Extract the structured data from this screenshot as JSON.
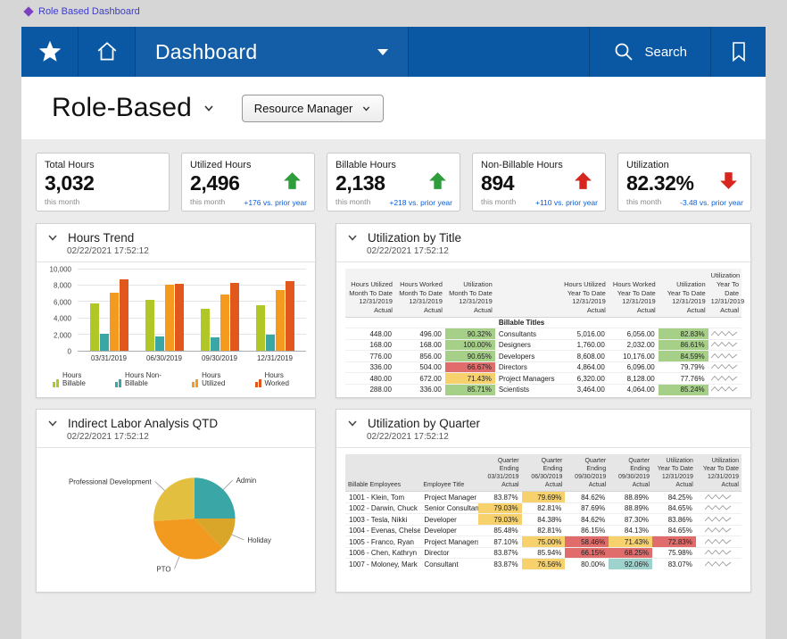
{
  "palette": {
    "nav_blue": "#0a58a4",
    "link_blue": "#0b5cc4",
    "positive": "#2e9e3c",
    "negative": "#d7261e",
    "delta_blue": "#0b5ed7",
    "cell_fills": {
      "green": "#a6d087",
      "yellow": "#f6d16c",
      "red": "#e06c6c",
      "teal": "#9ed3cd"
    }
  },
  "titlebar": {
    "app_title": "Role Based Dashboard"
  },
  "navbar": {
    "title": "Dashboard",
    "search_label": "Search",
    "icons": [
      "star-icon",
      "home-icon",
      "dropdown-caret-icon",
      "search-icon",
      "bookmark-icon"
    ]
  },
  "header": {
    "title": "Role-Based",
    "role_selector": "Resource Manager"
  },
  "kpis": [
    {
      "label": "Total Hours",
      "value": "3,032",
      "sub": "this month",
      "arrow": "none",
      "delta": ""
    },
    {
      "label": "Utilized Hours",
      "value": "2,496",
      "sub": "this month",
      "arrow": "up-green",
      "delta": "+176 vs. prior year"
    },
    {
      "label": "Billable Hours",
      "value": "2,138",
      "sub": "this month",
      "arrow": "up-green",
      "delta": "+218 vs. prior year"
    },
    {
      "label": "Non-Billable Hours",
      "value": "894",
      "sub": "this month",
      "arrow": "up-red",
      "delta": "+110 vs. prior year"
    },
    {
      "label": "Utilization",
      "value": "82.32%",
      "sub": "this month",
      "arrow": "down-red",
      "delta": "-3.48 vs. prior year"
    }
  ],
  "chart_data": [
    {
      "id": "hours_trend",
      "type": "bar",
      "title": "Hours Trend",
      "timestamp": "02/22/2021 17:52:12",
      "categories": [
        "03/31/2019",
        "06/30/2019",
        "09/30/2019",
        "12/31/2019"
      ],
      "series": [
        {
          "name": "Hours Billable",
          "color": "#b1c727",
          "values": [
            5800,
            6300,
            5200,
            5600
          ]
        },
        {
          "name": "Hours Non-Billable",
          "color": "#3aa6a6",
          "values": [
            2100,
            1800,
            1700,
            2000
          ]
        },
        {
          "name": "Hours Utilized",
          "color": "#f39a1f",
          "values": [
            7100,
            8100,
            6900,
            7500
          ]
        },
        {
          "name": "Hours Worked",
          "color": "#e2571c",
          "values": [
            8800,
            8200,
            8300,
            8600
          ]
        }
      ],
      "xlabel": "",
      "ylabel": "",
      "ylim": [
        0,
        10000
      ],
      "yticks": [
        "10,000",
        "8,000",
        "6,000",
        "4,000",
        "2,000",
        "0"
      ],
      "grid": true,
      "legend_position": "bottom"
    },
    {
      "id": "utilization_by_title",
      "type": "table",
      "title": "Utilization by Title",
      "timestamp": "02/22/2021 17:52:12",
      "group_label": "Billable Titles",
      "columns": [
        "Hours Utilized\nMonth To Date\n12/31/2019\nActual",
        "Hours Worked\nMonth To Date\n12/31/2019\nActual",
        "Utilization\nMonth To Date\n12/31/2019\nActual",
        "",
        "Hours Utilized\nYear To Date\n12/31/2019\nActual",
        "Hours Worked\nYear To Date\n12/31/2019\nActual",
        "Utilization\nYear To Date\n12/31/2019\nActual",
        "Utilization\nYear To Date\n12/31/2019\nActual"
      ],
      "rows": [
        {
          "title": "Consultants",
          "mtd": [
            "448.00",
            "496.00"
          ],
          "mtd_util": {
            "v": "90.32%",
            "c": "green"
          },
          "ytd": [
            "5,016.00",
            "6,056.00"
          ],
          "ytd_util": {
            "v": "82.83%",
            "c": "green"
          }
        },
        {
          "title": "Designers",
          "mtd": [
            "168.00",
            "168.00"
          ],
          "mtd_util": {
            "v": "100.00%",
            "c": "green"
          },
          "ytd": [
            "1,760.00",
            "2,032.00"
          ],
          "ytd_util": {
            "v": "86.61%",
            "c": "green"
          }
        },
        {
          "title": "Developers",
          "mtd": [
            "776.00",
            "856.00"
          ],
          "mtd_util": {
            "v": "90.65%",
            "c": "green"
          },
          "ytd": [
            "8,608.00",
            "10,176.00"
          ],
          "ytd_util": {
            "v": "84.59%",
            "c": "green"
          }
        },
        {
          "title": "Directors",
          "mtd": [
            "336.00",
            "504.00"
          ],
          "mtd_util": {
            "v": "66.67%",
            "c": "red"
          },
          "ytd": [
            "4,864.00",
            "6,096.00"
          ],
          "ytd_util": {
            "v": "79.79%",
            "c": "none"
          }
        },
        {
          "title": "Project Managers",
          "mtd": [
            "480.00",
            "672.00"
          ],
          "mtd_util": {
            "v": "71.43%",
            "c": "yellow"
          },
          "ytd": [
            "6,320.00",
            "8,128.00"
          ],
          "ytd_util": {
            "v": "77.76%",
            "c": "none"
          }
        },
        {
          "title": "Scientists",
          "mtd": [
            "288.00",
            "336.00"
          ],
          "mtd_util": {
            "v": "85.71%",
            "c": "green"
          },
          "ytd": [
            "3,464.00",
            "4,064.00"
          ],
          "ytd_util": {
            "v": "85.24%",
            "c": "green"
          }
        }
      ]
    },
    {
      "id": "indirect_labor_qtd",
      "type": "pie",
      "title": "Indirect Labor Analysis QTD",
      "timestamp": "02/22/2021 17:52:12",
      "slices": [
        {
          "label": "Admin",
          "value": 25,
          "color": "#3aa6a6"
        },
        {
          "label": "Holiday",
          "value": 13,
          "color": "#d9a62a"
        },
        {
          "label": "PTO",
          "value": 36,
          "color": "#f29a20"
        },
        {
          "label": "Professional Development",
          "value": 26,
          "color": "#e3bf3f"
        }
      ]
    },
    {
      "id": "utilization_by_quarter",
      "type": "table",
      "title": "Utilization by Quarter",
      "timestamp": "02/22/2021 17:52:12",
      "columns": [
        "Billable Employees",
        "Employee Title",
        "Quarter Ending\n03/31/2019\nActual",
        "Quarter Ending\n06/30/2019\nActual",
        "Quarter Ending\n09/30/2019\nActual",
        "Quarter Ending\n09/30/2019\nActual",
        "Utilization\nYear To Date\n12/31/2019\nActual",
        "Utilization\nYear To Date\n12/31/2019\nActual"
      ],
      "rows": [
        {
          "employee": "1001 - Klein, Tom",
          "title": "Project Manager",
          "quarters": [
            {
              "v": "83.87%",
              "c": "none"
            },
            {
              "v": "79.69%",
              "c": "yellow"
            },
            {
              "v": "84.62%",
              "c": "none"
            },
            {
              "v": "88.89%",
              "c": "none"
            }
          ],
          "ytd": {
            "v": "84.25%",
            "c": "none"
          }
        },
        {
          "employee": "1002 - Darwin, Chuck",
          "title": "Senior Consultant",
          "quarters": [
            {
              "v": "79.03%",
              "c": "yellow"
            },
            {
              "v": "82.81%",
              "c": "none"
            },
            {
              "v": "87.69%",
              "c": "none"
            },
            {
              "v": "88.89%",
              "c": "none"
            }
          ],
          "ytd": {
            "v": "84.65%",
            "c": "none"
          }
        },
        {
          "employee": "1003 - Tesla, Nikki",
          "title": "Developer",
          "quarters": [
            {
              "v": "79.03%",
              "c": "yellow"
            },
            {
              "v": "84.38%",
              "c": "none"
            },
            {
              "v": "84.62%",
              "c": "none"
            },
            {
              "v": "87.30%",
              "c": "none"
            }
          ],
          "ytd": {
            "v": "83.86%",
            "c": "none"
          }
        },
        {
          "employee": "1004 - Evenas, Chelsea",
          "title": "Developer",
          "quarters": [
            {
              "v": "85.48%",
              "c": "none"
            },
            {
              "v": "82.81%",
              "c": "none"
            },
            {
              "v": "86.15%",
              "c": "none"
            },
            {
              "v": "84.13%",
              "c": "none"
            }
          ],
          "ytd": {
            "v": "84.65%",
            "c": "none"
          }
        },
        {
          "employee": "1005 - Franco, Ryan",
          "title": "Project Managers",
          "quarters": [
            {
              "v": "87.10%",
              "c": "none"
            },
            {
              "v": "75.00%",
              "c": "yellow"
            },
            {
              "v": "58.46%",
              "c": "red"
            },
            {
              "v": "71.43%",
              "c": "yellow"
            }
          ],
          "ytd": {
            "v": "72.83%",
            "c": "red"
          }
        },
        {
          "employee": "1006 - Chen, Kathryn",
          "title": "Director",
          "quarters": [
            {
              "v": "83.87%",
              "c": "none"
            },
            {
              "v": "85.94%",
              "c": "none"
            },
            {
              "v": "66.15%",
              "c": "red"
            },
            {
              "v": "68.25%",
              "c": "red"
            }
          ],
          "ytd": {
            "v": "75.98%",
            "c": "none"
          }
        },
        {
          "employee": "1007 - Moloney, Mark",
          "title": "Consultant",
          "quarters": [
            {
              "v": "83.87%",
              "c": "none"
            },
            {
              "v": "76.56%",
              "c": "yellow"
            },
            {
              "v": "80.00%",
              "c": "none"
            },
            {
              "v": "92.06%",
              "c": "teal"
            }
          ],
          "ytd": {
            "v": "83.07%",
            "c": "none"
          }
        }
      ]
    }
  ]
}
